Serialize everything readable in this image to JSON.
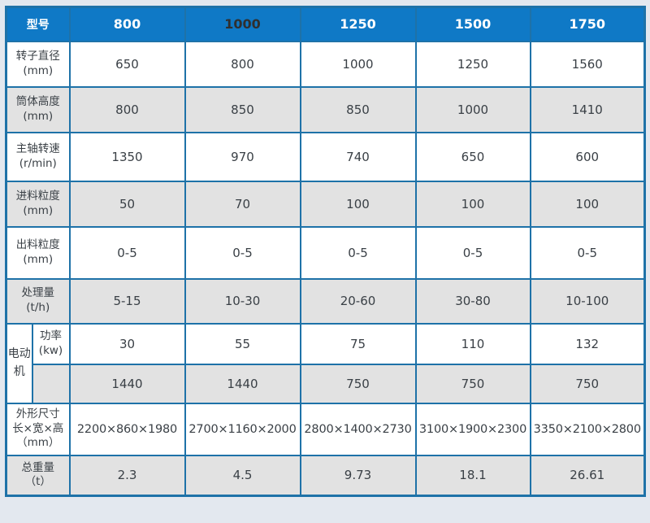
{
  "colors": {
    "header_bg": "#0f79c6",
    "border": "#1e72a8",
    "row_gray": "#e2e2e2",
    "row_white": "#ffffff",
    "text": "#3a4046",
    "header_text": "#ffffff",
    "page_bg": "#e3e8ef"
  },
  "table": {
    "header": {
      "label": "型号",
      "models": [
        {
          "label": "800",
          "text_color": "#ffffff"
        },
        {
          "label": "1000",
          "text_color": "#2f2f2f"
        },
        {
          "label": "1250",
          "text_color": "#ffffff"
        },
        {
          "label": "1500",
          "text_color": "#ffffff"
        },
        {
          "label": "1750",
          "text_color": "#ffffff"
        }
      ]
    },
    "motor_group_label": "电动机",
    "rows": [
      {
        "id": "rotor-diameter",
        "label_lines": [
          "转子直径",
          "(mm)"
        ],
        "values": [
          "650",
          "800",
          "1000",
          "1250",
          "1560"
        ],
        "shade": "white"
      },
      {
        "id": "cylinder-height",
        "label_lines": [
          "筒体高度",
          "(mm)"
        ],
        "values": [
          "800",
          "850",
          "850",
          "1000",
          "1410"
        ],
        "shade": "gray"
      },
      {
        "id": "spindle-speed",
        "label_lines": [
          "主轴转速",
          "(r/min)"
        ],
        "values": [
          "1350",
          "970",
          "740",
          "650",
          "600"
        ],
        "shade": "white"
      },
      {
        "id": "feed-size",
        "label_lines": [
          "进料粒度",
          "(mm)"
        ],
        "values": [
          "50",
          "70",
          "100",
          "100",
          "100"
        ],
        "shade": "gray"
      },
      {
        "id": "discharge-size",
        "label_lines": [
          "出料粒度",
          "(mm)"
        ],
        "values": [
          "0-5",
          "0-5",
          "0-5",
          "0-5",
          "0-5"
        ],
        "shade": "white"
      },
      {
        "id": "capacity",
        "label_lines": [
          "处理量",
          "(t/h)"
        ],
        "values": [
          "5-15",
          "10-30",
          "20-60",
          "30-80",
          "10-100"
        ],
        "shade": "gray"
      },
      {
        "id": "motor-power",
        "group": "motor",
        "sub_label_lines": [
          "功率",
          "(kw)"
        ],
        "values": [
          "30",
          "55",
          "75",
          "110",
          "132"
        ],
        "shade": "white"
      },
      {
        "id": "motor-speed",
        "group": "motor",
        "sub_label_lines": [],
        "values": [
          "1440",
          "1440",
          "750",
          "750",
          "750"
        ],
        "shade": "gray"
      },
      {
        "id": "dimensions",
        "label_lines": [
          "外形尺寸",
          "长×宽×高",
          "（mm）"
        ],
        "values": [
          "2200×860×1980",
          "2700×1160×2000",
          "2800×1400×2730",
          "3100×1900×2300",
          "3350×2100×2800"
        ],
        "shade": "white"
      },
      {
        "id": "total-weight",
        "label_lines": [
          "总重量",
          "（t）"
        ],
        "values": [
          "2.3",
          "4.5",
          "9.73",
          "18.1",
          "26.61"
        ],
        "shade": "gray"
      }
    ]
  }
}
